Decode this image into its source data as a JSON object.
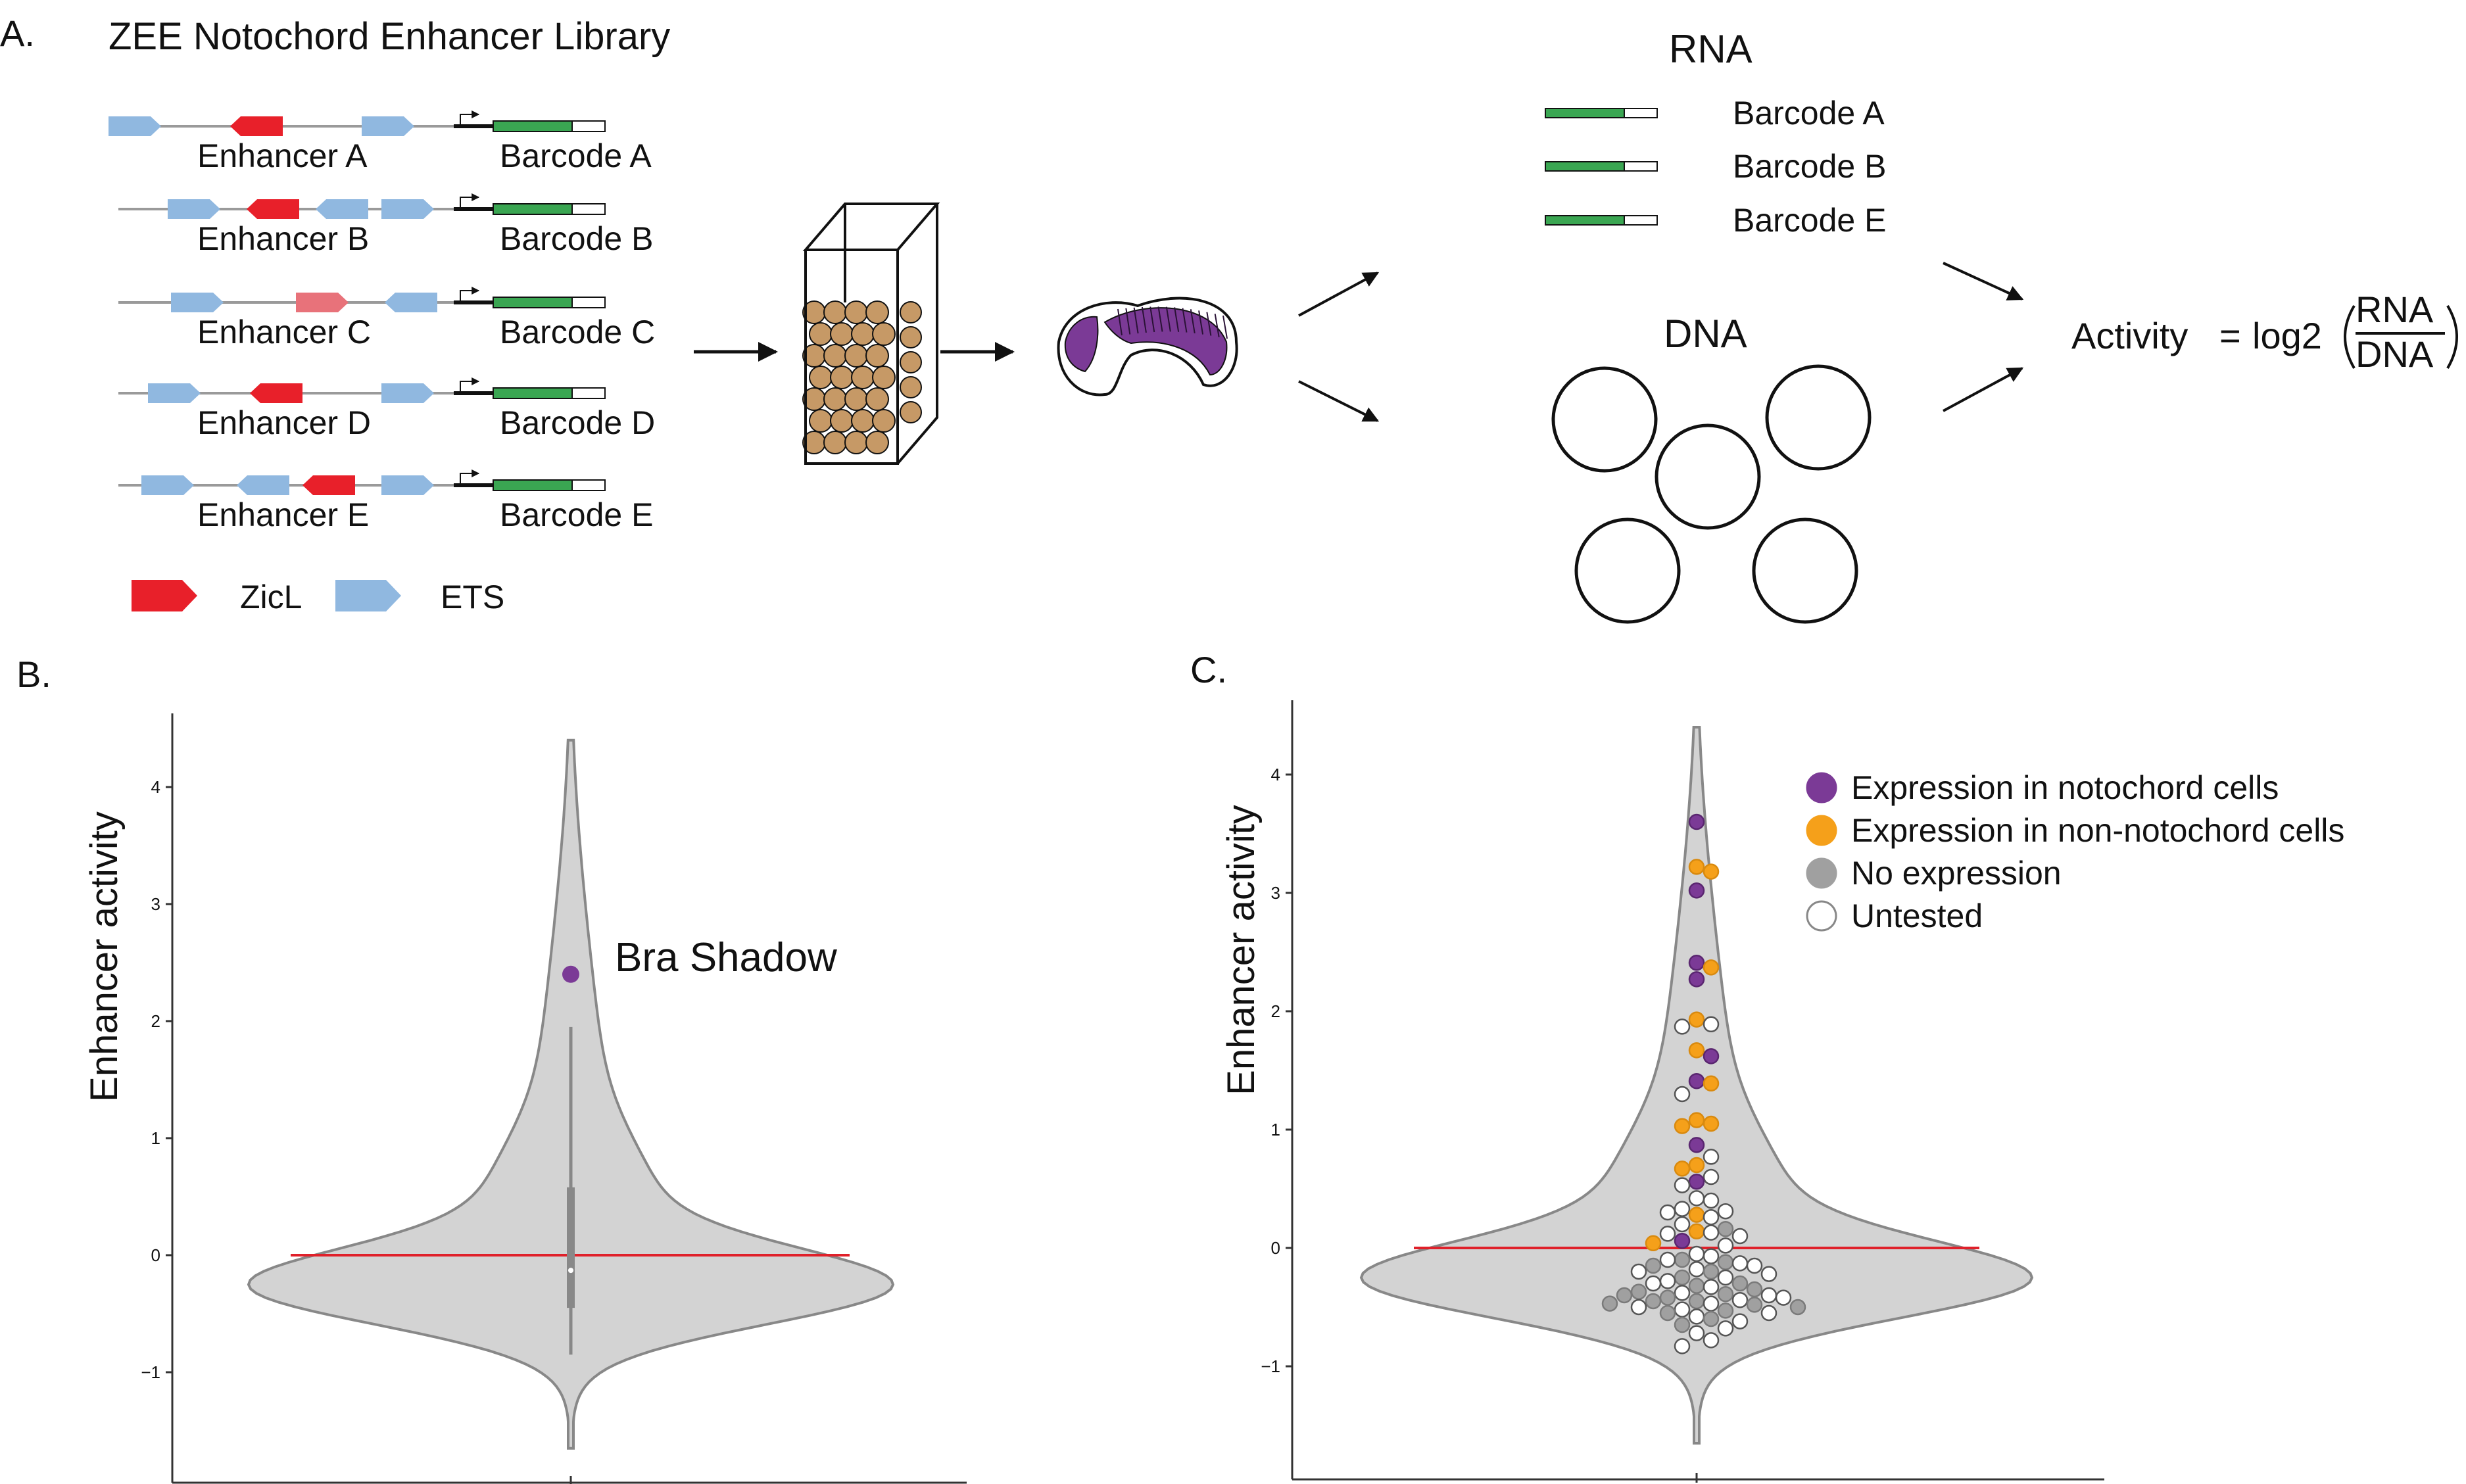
{
  "panelA": {
    "label": "A.",
    "title": "ZEE Notochord Enhancer Library",
    "constructs": [
      {
        "enhancer": "Enhancer A",
        "barcode": "Barcode A",
        "motifs": [
          {
            "type": "ETS",
            "dir": "right"
          },
          {
            "type": "ZicL",
            "dir": "left"
          },
          {
            "type": "ETS",
            "dir": "right"
          }
        ]
      },
      {
        "enhancer": "Enhancer B",
        "barcode": "Barcode B",
        "motifs": [
          {
            "type": "ETS",
            "dir": "right"
          },
          {
            "type": "ZicL",
            "dir": "left"
          },
          {
            "type": "ETS",
            "dir": "left"
          },
          {
            "type": "ETS",
            "dir": "right"
          }
        ]
      },
      {
        "enhancer": "Enhancer C",
        "barcode": "Barcode C",
        "motifs": [
          {
            "type": "ETS",
            "dir": "right"
          },
          {
            "type": "ZicL-weak",
            "dir": "right"
          },
          {
            "type": "ETS",
            "dir": "left"
          }
        ]
      },
      {
        "enhancer": "Enhancer D",
        "barcode": "Barcode D",
        "motifs": [
          {
            "type": "ETS",
            "dir": "right"
          },
          {
            "type": "ZicL",
            "dir": "left"
          },
          {
            "type": "ETS",
            "dir": "right"
          }
        ]
      },
      {
        "enhancer": "Enhancer E",
        "barcode": "Barcode E",
        "motifs": [
          {
            "type": "ETS",
            "dir": "right"
          },
          {
            "type": "ETS",
            "dir": "left"
          },
          {
            "type": "ZicL",
            "dir": "left"
          },
          {
            "type": "ETS",
            "dir": "right"
          }
        ]
      }
    ],
    "legend": [
      {
        "label": "ZicL",
        "color": "#e8202a"
      },
      {
        "label": "ETS",
        "color": "#90b8e0"
      }
    ],
    "rna_title": "RNA",
    "rna_barcodes": [
      "Barcode A",
      "Barcode B",
      "Barcode E"
    ],
    "dna_title": "DNA",
    "formula": {
      "lhs": "Activity",
      "eq": "=",
      "fn": "log2",
      "num": "RNA",
      "den": "DNA"
    }
  },
  "panelB": {
    "label": "B.",
    "ylabel": "Enhancer activity",
    "annotation": "Bra Shadow",
    "chart_data": {
      "type": "violin",
      "ylabel": "Enhancer activity",
      "yticks": [
        "−1",
        "0",
        "1",
        "2",
        "3",
        "4"
      ],
      "ylim": [
        -1.7,
        4.5
      ],
      "reference_line_y": 0,
      "box": {
        "whisker_low": -0.85,
        "q1": -0.45,
        "median": -0.13,
        "q3": 0.58,
        "whisker_high": 1.95
      },
      "highlight": {
        "label": "Bra Shadow",
        "y": 2.4
      },
      "range": [
        -1.65,
        4.4
      ]
    }
  },
  "panelC": {
    "label": "C.",
    "ylabel": "Enhancer activity",
    "chart_data": {
      "type": "violin_swarm",
      "ylabel": "Enhancer activity",
      "yticks": [
        "−1",
        "0",
        "1",
        "2",
        "3",
        "4"
      ],
      "ylim": [
        -1.7,
        4.5
      ],
      "reference_line_y": 0,
      "legend": [
        {
          "label": "Expression in notochord cells",
          "color": "#7b3a96"
        },
        {
          "label": "Expression in non-notochord cells",
          "color": "#f5a01a"
        },
        {
          "label": "No expression",
          "color": "#a0a0a0"
        },
        {
          "label": "Untested",
          "color": "#ffffff"
        }
      ],
      "points": [
        {
          "y": 3.6,
          "c": 0
        },
        {
          "y": 3.22,
          "c": 1
        },
        {
          "y": 3.18,
          "c": 1
        },
        {
          "y": 3.02,
          "c": 0
        },
        {
          "y": 2.41,
          "c": 0
        },
        {
          "y": 2.37,
          "c": 1
        },
        {
          "y": 2.27,
          "c": 0
        },
        {
          "y": 1.93,
          "c": 1
        },
        {
          "y": 1.89,
          "c": 3
        },
        {
          "y": 1.87,
          "c": 3
        },
        {
          "y": 1.67,
          "c": 1
        },
        {
          "y": 1.62,
          "c": 0
        },
        {
          "y": 1.41,
          "c": 0
        },
        {
          "y": 1.39,
          "c": 1
        },
        {
          "y": 1.3,
          "c": 3
        },
        {
          "y": 1.08,
          "c": 1
        },
        {
          "y": 1.05,
          "c": 1
        },
        {
          "y": 1.03,
          "c": 1
        },
        {
          "y": 0.87,
          "c": 0
        },
        {
          "y": 0.77,
          "c": 3
        },
        {
          "y": 0.7,
          "c": 1
        },
        {
          "y": 0.67,
          "c": 1
        },
        {
          "y": 0.6,
          "c": 3
        },
        {
          "y": 0.56,
          "c": 0
        },
        {
          "y": 0.53,
          "c": 3
        },
        {
          "y": 0.42,
          "c": 3
        },
        {
          "y": 0.4,
          "c": 3
        },
        {
          "y": 0.33,
          "c": 3
        },
        {
          "y": 0.31,
          "c": 3
        },
        {
          "y": 0.3,
          "c": 3
        },
        {
          "y": 0.28,
          "c": 1
        },
        {
          "y": 0.26,
          "c": 3
        },
        {
          "y": 0.2,
          "c": 3
        },
        {
          "y": 0.16,
          "c": 2
        },
        {
          "y": 0.14,
          "c": 1
        },
        {
          "y": 0.13,
          "c": 3
        },
        {
          "y": 0.12,
          "c": 3
        },
        {
          "y": 0.1,
          "c": 3
        },
        {
          "y": 0.06,
          "c": 0
        },
        {
          "y": 0.04,
          "c": 1
        },
        {
          "y": 0.02,
          "c": 3
        },
        {
          "y": -0.05,
          "c": 3
        },
        {
          "y": -0.07,
          "c": 3
        },
        {
          "y": -0.1,
          "c": 2
        },
        {
          "y": -0.1,
          "c": 3
        },
        {
          "y": -0.12,
          "c": 2
        },
        {
          "y": -0.13,
          "c": 3
        },
        {
          "y": -0.15,
          "c": 2
        },
        {
          "y": -0.15,
          "c": 3
        },
        {
          "y": -0.18,
          "c": 3
        },
        {
          "y": -0.2,
          "c": 2
        },
        {
          "y": -0.2,
          "c": 3
        },
        {
          "y": -0.22,
          "c": 3
        },
        {
          "y": -0.25,
          "c": 2
        },
        {
          "y": -0.25,
          "c": 3
        },
        {
          "y": -0.28,
          "c": 3
        },
        {
          "y": -0.3,
          "c": 2
        },
        {
          "y": -0.3,
          "c": 3
        },
        {
          "y": -0.32,
          "c": 2
        },
        {
          "y": -0.33,
          "c": 3
        },
        {
          "y": -0.35,
          "c": 2
        },
        {
          "y": -0.37,
          "c": 2
        },
        {
          "y": -0.38,
          "c": 3
        },
        {
          "y": -0.39,
          "c": 2
        },
        {
          "y": -0.4,
          "c": 3
        },
        {
          "y": -0.4,
          "c": 2
        },
        {
          "y": -0.42,
          "c": 2
        },
        {
          "y": -0.42,
          "c": 3
        },
        {
          "y": -0.44,
          "c": 3
        },
        {
          "y": -0.45,
          "c": 2
        },
        {
          "y": -0.45,
          "c": 2
        },
        {
          "y": -0.47,
          "c": 3
        },
        {
          "y": -0.47,
          "c": 2
        },
        {
          "y": -0.48,
          "c": 2
        },
        {
          "y": -0.5,
          "c": 3
        },
        {
          "y": -0.5,
          "c": 2
        },
        {
          "y": -0.52,
          "c": 3
        },
        {
          "y": -0.53,
          "c": 2
        },
        {
          "y": -0.55,
          "c": 2
        },
        {
          "y": -0.55,
          "c": 3
        },
        {
          "y": -0.58,
          "c": 3
        },
        {
          "y": -0.6,
          "c": 2
        },
        {
          "y": -0.62,
          "c": 3
        },
        {
          "y": -0.65,
          "c": 2
        },
        {
          "y": -0.68,
          "c": 3
        },
        {
          "y": -0.72,
          "c": 3
        },
        {
          "y": -0.78,
          "c": 3
        },
        {
          "y": -0.83,
          "c": 3
        }
      ]
    }
  }
}
